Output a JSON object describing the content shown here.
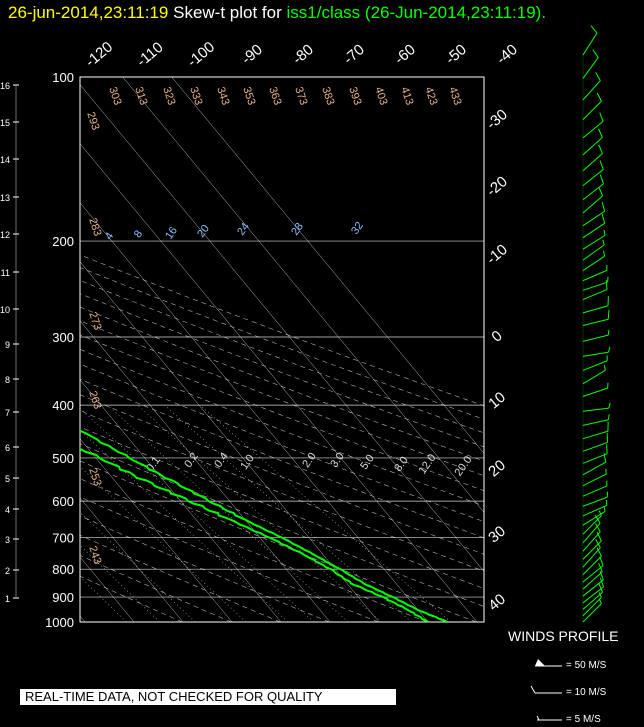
{
  "header": {
    "date": "26-jun-2014,23:11:19",
    "label": "Skew-t plot for",
    "station": "iss1/class (26-Jun-2014,23:11:19)",
    "period": "."
  },
  "disclaimer": "REAL-TIME DATA, NOT CHECKED FOR QUALITY",
  "winds": {
    "title": "WINDS PROFILE",
    "legend": [
      "= 50 M/S",
      "= 10 M/S",
      "= 5 M/S"
    ]
  },
  "colors": {
    "background": "#000000",
    "profile": "#00ff00",
    "grid": "#ffffff",
    "header_date": "#ffff00",
    "header_station": "#00ff00",
    "theta_label": "#e8b08a",
    "mixing_label": "#8fc0ff"
  },
  "chart_data": {
    "type": "line",
    "title": "Skew-t plot",
    "pressure_levels_hpa": [
      100,
      200,
      300,
      400,
      500,
      600,
      700,
      800,
      900,
      1000
    ],
    "pressure_range_hpa": [
      100,
      1000
    ],
    "height_km_ticks": [
      1,
      2,
      3,
      4,
      5,
      6,
      7,
      8,
      9,
      10,
      11,
      12,
      13,
      14,
      15,
      16
    ],
    "top_temperature_labels": [
      -120,
      -110,
      -100,
      -90,
      -80,
      -70,
      -60,
      -50,
      -40
    ],
    "right_temperature_labels": [
      -30,
      -20,
      -10,
      0,
      10,
      20,
      30,
      40
    ],
    "dry_adiabat_labels": [
      293,
      303,
      313,
      323,
      333,
      343,
      353,
      363,
      373,
      383,
      393,
      403,
      413,
      423,
      433,
      283,
      273,
      263,
      253,
      243
    ],
    "mixing_ratio_labels": [
      "4",
      "8",
      "16",
      "20",
      "24",
      "28",
      "32"
    ],
    "mixing_ratio_lower_labels": [
      "0.1",
      "0.2",
      "0.4",
      "1.0",
      "2.0",
      "3.0",
      "5.0",
      "8.0",
      "12.0",
      "20.0"
    ],
    "series": [
      {
        "name": "temperature",
        "points": [
          [
            1000,
            24
          ],
          [
            950,
            20
          ],
          [
            900,
            17
          ],
          [
            850,
            13.5
          ],
          [
            800,
            11
          ],
          [
            750,
            8
          ],
          [
            700,
            4.5
          ],
          [
            650,
            0
          ],
          [
            600,
            -4
          ],
          [
            550,
            -8.5
          ],
          [
            500,
            -13
          ],
          [
            450,
            -18
          ],
          [
            400,
            -24
          ],
          [
            350,
            -31
          ],
          [
            300,
            -39
          ],
          [
            280,
            -43
          ],
          [
            270,
            -43
          ],
          [
            260,
            -48
          ],
          [
            250,
            -52
          ],
          [
            240,
            -53
          ],
          [
            230,
            -54
          ],
          [
            220,
            -54
          ],
          [
            210,
            -56
          ],
          [
            200,
            -58
          ],
          [
            180,
            -60
          ],
          [
            160,
            -63
          ],
          [
            140,
            -64
          ],
          [
            120,
            -66
          ],
          [
            110,
            -67
          ],
          [
            100,
            -69
          ]
        ]
      },
      {
        "name": "dewpoint",
        "points": [
          [
            1000,
            20
          ],
          [
            950,
            18
          ],
          [
            900,
            15
          ],
          [
            850,
            11
          ],
          [
            800,
            9
          ],
          [
            750,
            6
          ],
          [
            700,
            2
          ],
          [
            650,
            -3
          ],
          [
            600,
            -8
          ],
          [
            550,
            -14
          ],
          [
            500,
            -19
          ],
          [
            450,
            -26
          ],
          [
            400,
            -33
          ],
          [
            350,
            -41
          ],
          [
            300,
            -48
          ],
          [
            280,
            -52
          ],
          [
            270,
            -45
          ],
          [
            265,
            -46
          ],
          [
            255,
            -57
          ],
          [
            250,
            -61
          ],
          [
            240,
            -63
          ],
          [
            230,
            -65
          ],
          [
            220,
            -65
          ],
          [
            210,
            -67
          ],
          [
            200,
            -69
          ],
          [
            180,
            -74
          ],
          [
            160,
            -76
          ],
          [
            140,
            -80
          ],
          [
            120,
            -83
          ],
          [
            110,
            -84
          ],
          [
            100,
            -84
          ]
        ]
      }
    ],
    "wind_barbs": [
      {
        "p": 1000,
        "u": -5,
        "v": -5
      },
      {
        "p": 975,
        "u": -6,
        "v": -6
      },
      {
        "p": 950,
        "u": -8,
        "v": -7
      },
      {
        "p": 925,
        "u": -9,
        "v": -7
      },
      {
        "p": 900,
        "u": -10,
        "v": -8
      },
      {
        "p": 875,
        "u": -10,
        "v": -9
      },
      {
        "p": 850,
        "u": -11,
        "v": -9
      },
      {
        "p": 825,
        "u": -10,
        "v": -10
      },
      {
        "p": 800,
        "u": -9,
        "v": -10
      },
      {
        "p": 775,
        "u": -9,
        "v": -9
      },
      {
        "p": 750,
        "u": -8,
        "v": -9
      },
      {
        "p": 725,
        "u": -7,
        "v": -8
      },
      {
        "p": 700,
        "u": -7,
        "v": -7
      },
      {
        "p": 675,
        "u": -8,
        "v": -5
      },
      {
        "p": 650,
        "u": -9,
        "v": -4
      },
      {
        "p": 625,
        "u": -8,
        "v": -3
      },
      {
        "p": 600,
        "u": -7,
        "v": -3
      },
      {
        "p": 575,
        "u": -8,
        "v": -4
      },
      {
        "p": 550,
        "u": -9,
        "v": -5
      },
      {
        "p": 525,
        "u": -10,
        "v": -4
      },
      {
        "p": 500,
        "u": -11,
        "v": -4
      },
      {
        "p": 475,
        "u": -10,
        "v": -3
      },
      {
        "p": 450,
        "u": -9,
        "v": -2
      },
      {
        "p": 425,
        "u": -8,
        "v": -1
      },
      {
        "p": 400,
        "u": -6,
        "v": -2
      },
      {
        "p": 380,
        "u": -5,
        "v": -3
      },
      {
        "p": 360,
        "u": -5,
        "v": -2
      },
      {
        "p": 340,
        "u": -6,
        "v": -1
      },
      {
        "p": 320,
        "u": -8,
        "v": -2
      },
      {
        "p": 300,
        "u": -12,
        "v": -3
      },
      {
        "p": 285,
        "u": -14,
        "v": -4
      },
      {
        "p": 270,
        "u": -12,
        "v": -5
      },
      {
        "p": 260,
        "u": -9,
        "v": -3
      },
      {
        "p": 250,
        "u": -7,
        "v": -3
      },
      {
        "p": 240,
        "u": -6,
        "v": -4
      },
      {
        "p": 230,
        "u": -7,
        "v": -5
      },
      {
        "p": 220,
        "u": -8,
        "v": -5
      },
      {
        "p": 210,
        "u": -9,
        "v": -6
      },
      {
        "p": 200,
        "u": -9,
        "v": -6
      },
      {
        "p": 190,
        "u": -8,
        "v": -7
      },
      {
        "p": 180,
        "u": -9,
        "v": -7
      },
      {
        "p": 170,
        "u": -10,
        "v": -8
      },
      {
        "p": 160,
        "u": -9,
        "v": -8
      },
      {
        "p": 150,
        "u": -10,
        "v": -9
      },
      {
        "p": 140,
        "u": -11,
        "v": -9
      },
      {
        "p": 130,
        "u": -10,
        "v": -10
      },
      {
        "p": 120,
        "u": -9,
        "v": -10
      },
      {
        "p": 110,
        "u": -8,
        "v": -11
      },
      {
        "p": 100,
        "u": -7,
        "v": -11
      }
    ]
  }
}
